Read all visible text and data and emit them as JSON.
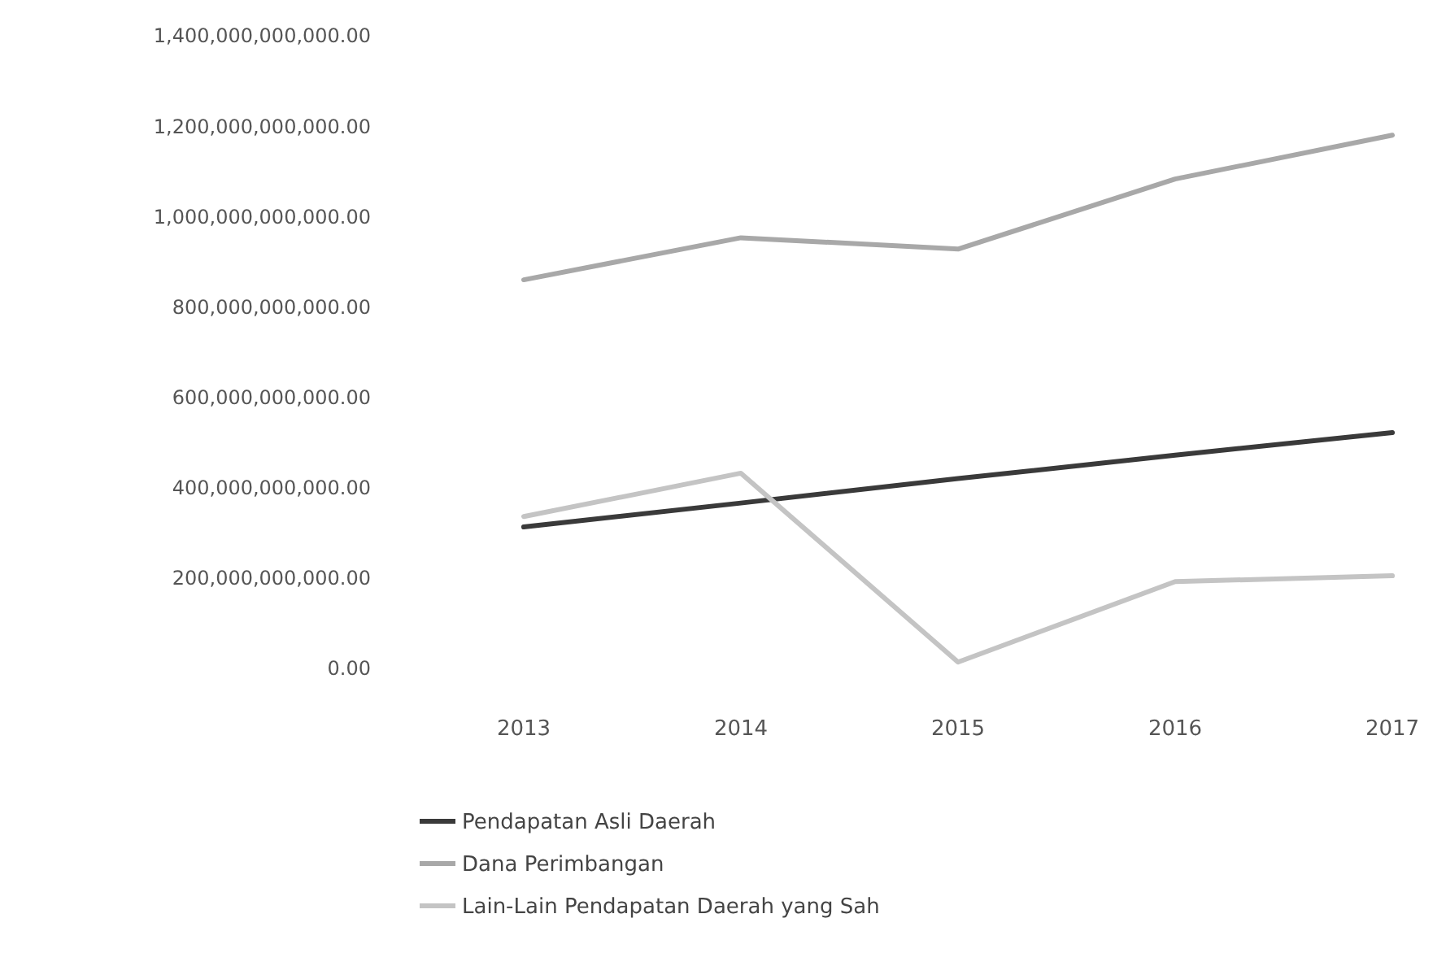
{
  "chart_data": {
    "type": "line",
    "categories": [
      "2013",
      "2014",
      "2015",
      "2016",
      "2017"
    ],
    "series": [
      {
        "name": "Pendapatan Asli Daerah",
        "color": "#3a3a3a",
        "values": [
          313000000000,
          366000000000,
          420000000000,
          472000000000,
          522000000000
        ]
      },
      {
        "name": "Dana Perimbangan",
        "color": "#a8a8a8",
        "values": [
          860000000000,
          953000000000,
          928000000000,
          1083000000000,
          1180000000000
        ]
      },
      {
        "name": "Lain-Lain Pendapatan Daerah yang Sah",
        "color": "#c4c4c4",
        "values": [
          336000000000,
          432000000000,
          14000000000,
          192000000000,
          205000000000
        ]
      }
    ],
    "ylim": [
      0,
      1400000000000
    ],
    "yticks": [
      {
        "value": 0,
        "label": "0.00"
      },
      {
        "value": 200000000000,
        "label": "200,000,000,000.00"
      },
      {
        "value": 400000000000,
        "label": "400,000,000,000.00"
      },
      {
        "value": 600000000000,
        "label": "600,000,000,000.00"
      },
      {
        "value": 800000000000,
        "label": "800,000,000,000.00"
      },
      {
        "value": 1000000000000,
        "label": "1,000,000,000,000.00"
      },
      {
        "value": 1200000000000,
        "label": "1,200,000,000,000.00"
      },
      {
        "value": 1400000000000,
        "label": "1,400,000,000,000.00"
      }
    ],
    "legend": "bottom",
    "marker": "none",
    "line_style": "solid"
  }
}
